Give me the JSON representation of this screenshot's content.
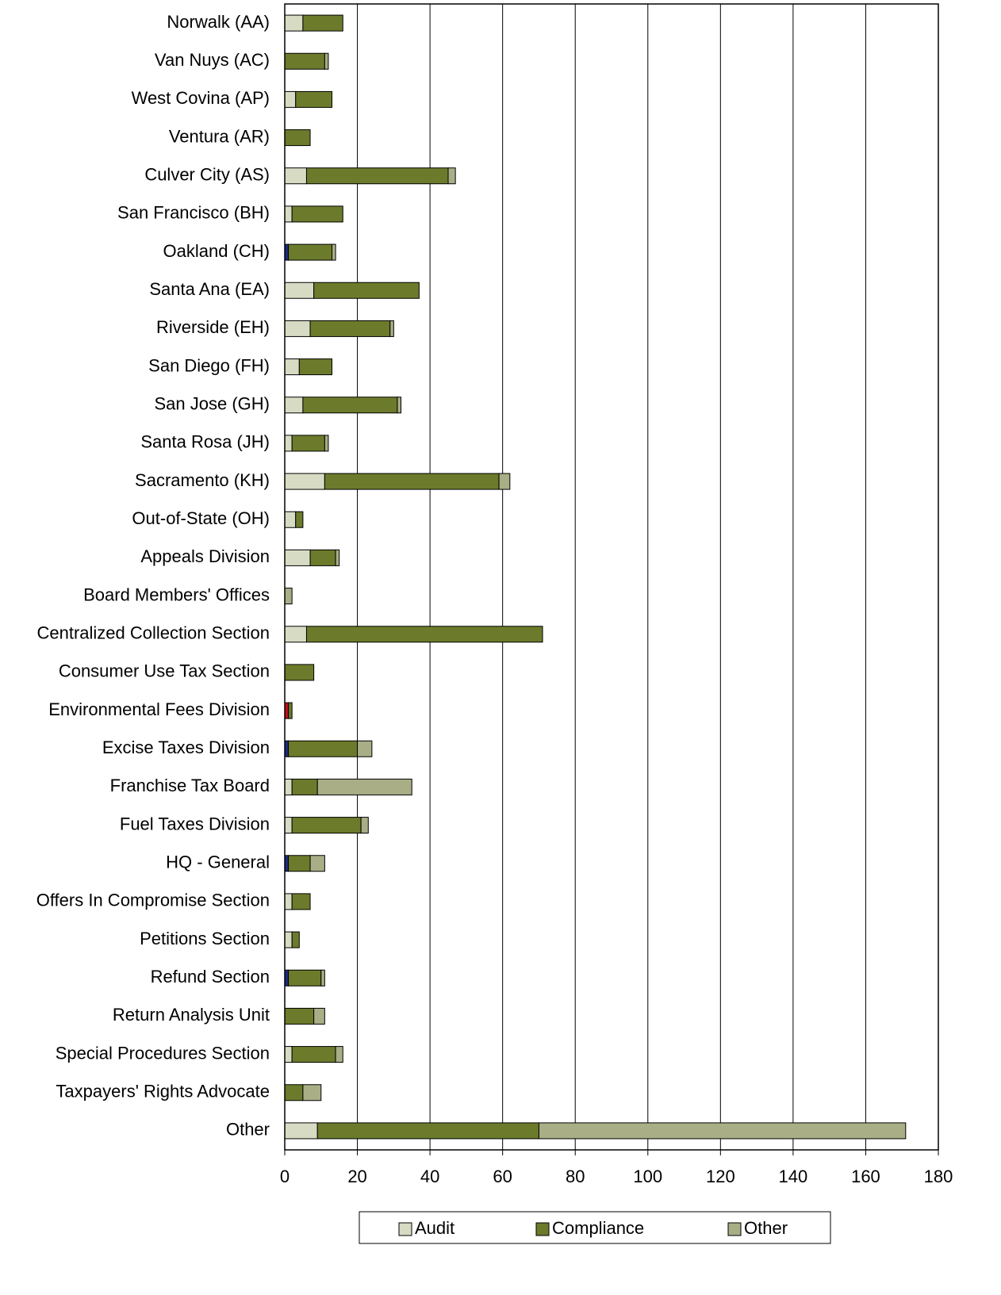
{
  "chart_data": {
    "type": "stacked-barh",
    "categories": [
      "Norwalk (AA)",
      "Van Nuys (AC)",
      "West Covina (AP)",
      "Ventura (AR)",
      "Culver City (AS)",
      "San Francisco (BH)",
      "Oakland (CH)",
      "Santa Ana (EA)",
      "Riverside (EH)",
      "San Diego (FH)",
      "San Jose (GH)",
      "Santa Rosa (JH)",
      "Sacramento (KH)",
      "Out-of-State (OH)",
      "Appeals Division",
      "Board Members' Offices",
      "Centralized Collection Section",
      "Consumer Use Tax Section",
      "Environmental Fees Division",
      "Excise Taxes Division",
      "Franchise Tax Board",
      "Fuel Taxes Division",
      "HQ - General",
      "Offers In Compromise Section",
      "Petitions Section",
      "Refund Section",
      "Return Analysis Unit",
      "Special Procedures Section",
      "Taxpayers' Rights Advocate",
      "Other"
    ],
    "series": [
      {
        "color": "#1f2a80",
        "values": [
          0,
          0,
          0,
          0,
          0,
          0,
          1,
          0,
          0,
          0,
          0,
          0,
          0,
          0,
          0,
          0,
          0,
          0,
          0,
          1,
          0,
          0,
          1,
          0,
          0,
          1,
          0,
          0,
          0,
          0
        ]
      },
      {
        "color": "#c0101a",
        "values": [
          0,
          0,
          0,
          0,
          0,
          0,
          0,
          0,
          0,
          0,
          0,
          0,
          0,
          0,
          0,
          0,
          0,
          0,
          1,
          0,
          0,
          0,
          0,
          0,
          0,
          0,
          0,
          0,
          0,
          0
        ]
      },
      {
        "name": "Audit",
        "color": "#d8dbc4",
        "values": [
          5,
          0,
          3,
          0,
          6,
          2,
          0,
          8,
          7,
          4,
          5,
          2,
          11,
          3,
          7,
          0,
          6,
          0,
          0,
          0,
          2,
          2,
          0,
          2,
          2,
          0,
          0,
          2,
          0,
          9
        ]
      },
      {
        "name": "Compliance",
        "color": "#6b7b2b",
        "values": [
          11,
          11,
          10,
          7,
          39,
          14,
          12,
          29,
          22,
          9,
          26,
          9,
          48,
          2,
          7,
          0,
          65,
          8,
          1,
          19,
          7,
          19,
          6,
          5,
          2,
          9,
          8,
          12,
          5,
          61
        ]
      },
      {
        "name": "Other",
        "color": "#a9ae86",
        "values": [
          0,
          1,
          0,
          0,
          2,
          0,
          1,
          0,
          1,
          0,
          1,
          1,
          3,
          0,
          1,
          2,
          0,
          0,
          0,
          4,
          26,
          2,
          4,
          0,
          0,
          1,
          3,
          2,
          5,
          101
        ]
      }
    ],
    "xlim": [
      0,
      180
    ],
    "xticks": [
      0,
      20,
      40,
      60,
      80,
      100,
      120,
      140,
      160,
      180
    ],
    "grid": true,
    "legend": "bottom"
  }
}
